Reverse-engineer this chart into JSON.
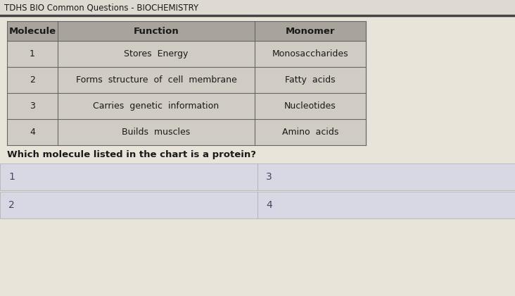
{
  "title": "TDHS BIO Common Questions - BIOCHEMISTRY",
  "title_fontsize": 8.5,
  "table_headers": [
    "Molecule",
    "Function",
    "Monomer"
  ],
  "table_rows": [
    [
      "1",
      "Stores  Energy",
      "Monosaccharides"
    ],
    [
      "2",
      "Forms  structure  of  cell  membrane",
      "Fatty  acids"
    ],
    [
      "3",
      "Carries  genetic  information",
      "Nucleotides"
    ],
    [
      "4",
      "Builds  muscles",
      "Amino  acids"
    ]
  ],
  "question": "Which molecule listed in the chart is a protein?",
  "bg_color": "#e8e4da",
  "title_bar_color": "#d8d4ca",
  "header_bg": "#a8a49c",
  "cell_bg": "#d0ccc4",
  "answer_box_color": "#d8d8e4",
  "border_color": "#666666",
  "text_color": "#1a1a1a",
  "title_line_color": "#444444"
}
